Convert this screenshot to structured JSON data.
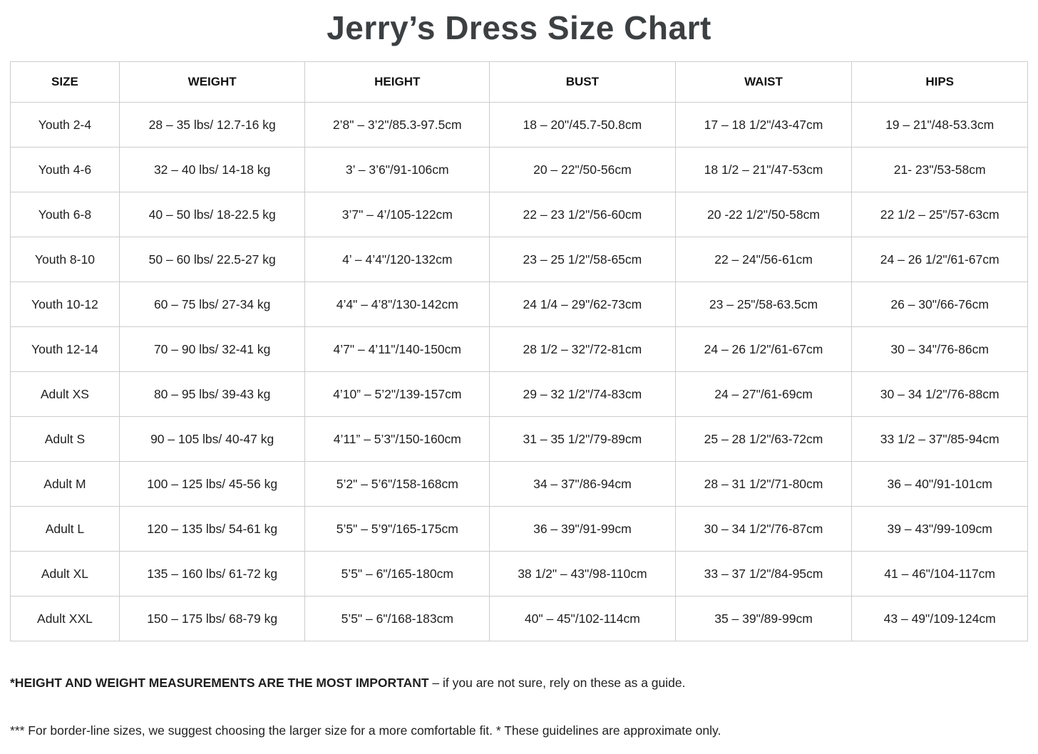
{
  "title": "Jerry’s Dress Size Chart",
  "colors": {
    "title": "#3c4043",
    "text": "#1f1f1f",
    "border": "#cccccc",
    "background": "#ffffff"
  },
  "table": {
    "headers": [
      "SIZE",
      "WEIGHT",
      "HEIGHT",
      "BUST",
      "WAIST",
      "HIPS"
    ],
    "column_width_percents": [
      10.71,
      18.26,
      18.12,
      18.26,
      17.35,
      17.28
    ],
    "rows": [
      [
        "Youth 2-4",
        "28 – 35 lbs/ 12.7-16 kg",
        "2’8\" – 3’2\"/85.3-97.5cm",
        "18 – 20\"/45.7-50.8cm",
        "17 – 18 1/2\"/43-47cm",
        "19 – 21\"/48-53.3cm"
      ],
      [
        "Youth 4-6",
        "32 – 40 lbs/ 14-18 kg",
        "3’ – 3’6\"/91-106cm",
        "20 – 22\"/50-56cm",
        "18 1/2 – 21\"/47-53cm",
        "21- 23\"/53-58cm"
      ],
      [
        "Youth 6-8",
        "40 – 50 lbs/ 18-22.5 kg",
        "3’7\" – 4’/105-122cm",
        "22 – 23 1/2\"/56-60cm",
        "20 -22 1/2\"/50-58cm",
        "22 1/2 – 25\"/57-63cm"
      ],
      [
        "Youth 8-10",
        "50 – 60 lbs/ 22.5-27 kg",
        "4’ – 4’4\"/120-132cm",
        "23 – 25 1/2\"/58-65cm",
        "22 – 24\"/56-61cm",
        "24 – 26 1/2\"/61-67cm"
      ],
      [
        "Youth 10-12",
        "60 – 75 lbs/ 27-34 kg",
        "4’4\" – 4’8\"/130-142cm",
        "24 1/4 – 29\"/62-73cm",
        "23 – 25\"/58-63.5cm",
        "26 – 30\"/66-76cm"
      ],
      [
        "Youth 12-14",
        "70 – 90 lbs/ 32-41 kg",
        "4’7\" – 4’11\"/140-150cm",
        "28 1/2 – 32\"/72-81cm",
        "24 – 26 1/2\"/61-67cm",
        "30 – 34\"/76-86cm"
      ],
      [
        "Adult XS",
        "80 – 95 lbs/ 39-43 kg",
        "4’10” – 5’2\"/139-157cm",
        "29 – 32 1/2\"/74-83cm",
        "24 – 27\"/61-69cm",
        "30 – 34 1/2\"/76-88cm"
      ],
      [
        "Adult S",
        "90 – 105 lbs/ 40-47 kg",
        "4’11” – 5’3\"/150-160cm",
        "31 – 35 1/2\"/79-89cm",
        "25 – 28 1/2\"/63-72cm",
        "33 1/2 – 37\"/85-94cm"
      ],
      [
        "Adult M",
        "100 – 125 lbs/ 45-56 kg",
        "5’2\" – 5’6\"/158-168cm",
        "34 – 37\"/86-94cm",
        "28 – 31 1/2\"/71-80cm",
        "36 – 40\"/91-101cm"
      ],
      [
        "Adult L",
        "120 – 135 lbs/ 54-61 kg",
        "5’5\" – 5’9\"/165-175cm",
        "36 – 39\"/91-99cm",
        "30 – 34 1/2\"/76-87cm",
        "39 – 43\"/99-109cm"
      ],
      [
        "Adult XL",
        "135 – 160 lbs/ 61-72 kg",
        "5’5\" – 6\"/165-180cm",
        "38 1/2\" – 43\"/98-110cm",
        "33 – 37 1/2\"/84-95cm",
        "41 – 46\"/104-117cm"
      ],
      [
        "Adult XXL",
        "150 – 175 lbs/ 68-79 kg",
        "5’5\" – 6\"/168-183cm",
        "40\" – 45\"/102-114cm",
        "35 – 39\"/89-99cm",
        "43 – 49\"/109-124cm"
      ]
    ]
  },
  "footnotes": {
    "note1_bold": "*HEIGHT AND WEIGHT MEASUREMENTS ARE THE MOST IMPORTANT",
    "note1_rest": " – if you are not sure, rely on these as a guide.",
    "note2": "*** For border-line sizes, we suggest choosing the larger size for a more comfortable fit. * These guidelines are approximate only."
  }
}
